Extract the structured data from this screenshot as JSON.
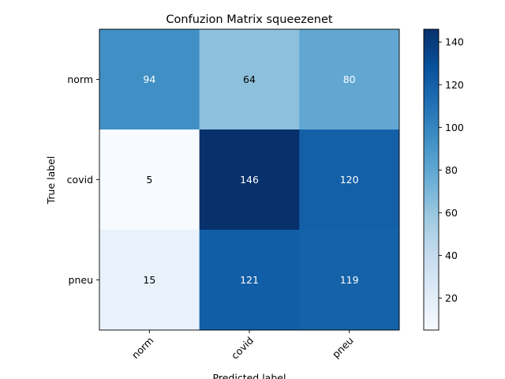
{
  "chart_data": {
    "type": "heatmap",
    "title": "Confuzion Matrix squeezenet",
    "xlabel": "Predicted label",
    "ylabel": "True label",
    "x_categories": [
      "norm",
      "covid",
      "pneu"
    ],
    "y_categories": [
      "norm",
      "covid",
      "pneu"
    ],
    "values": [
      [
        94,
        64,
        80
      ],
      [
        5,
        146,
        120
      ],
      [
        15,
        121,
        119
      ]
    ],
    "colormap": "Blues",
    "vmin": 5,
    "vmax": 146,
    "colorbar_ticks": [
      20,
      40,
      60,
      80,
      100,
      120,
      140
    ]
  }
}
